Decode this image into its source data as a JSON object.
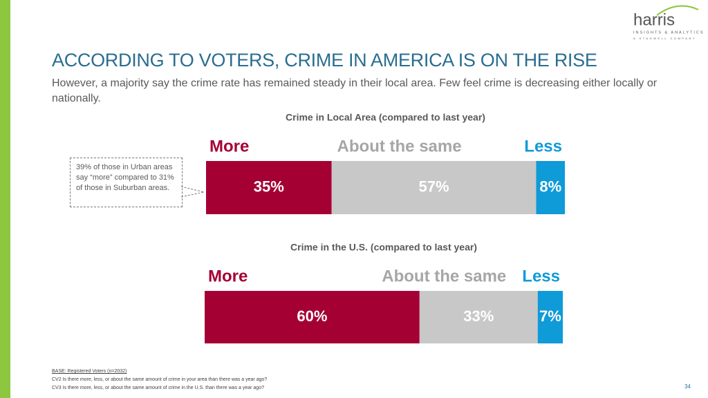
{
  "slide": {
    "title": "ACCORDING TO VOTERS, CRIME IN AMERICA IS ON THE RISE",
    "subtitle": "However, a majority say the crime rate has remained steady in their local area. Few feel crime is decreasing either locally or nationally.",
    "callout": "39% of those in Urban areas say “more” compared to 31% of those in Suburban areas.",
    "footnotes": [
      "BASE: Registered Voters (n=2032)",
      "CV2 Is there more, less, or about the same amount of crime in your area than there was a year ago?",
      "CV3 Is there more, less, or about the same amount of crime in the U.S. than there was a year ago?"
    ],
    "page_number": "34",
    "logo": {
      "name": "harris",
      "tagline": "INSIGHTS & ANALYTICS",
      "company": "A STAGWELL COMPANY"
    }
  },
  "chart_data": [
    {
      "type": "stacked_bar",
      "title": "Crime in Local Area (compared to last year)",
      "series": [
        {
          "name": "More",
          "color": "#a50034",
          "text_color": "#a50034",
          "values": [
            35
          ],
          "value_labels": [
            "35%"
          ]
        },
        {
          "name": "About the same",
          "color": "#c8c8c8",
          "text_color": "#a6a6a6",
          "values": [
            57
          ],
          "value_labels": [
            "57%"
          ]
        },
        {
          "name": "Less",
          "color": "#0f9ad8",
          "text_color": "#0f9ad8",
          "values": [
            8
          ],
          "value_labels": [
            "8%"
          ]
        }
      ]
    },
    {
      "type": "stacked_bar",
      "title": "Crime in the U.S. (compared to last year)",
      "series": [
        {
          "name": "More",
          "color": "#a50034",
          "text_color": "#a50034",
          "values": [
            60
          ],
          "value_labels": [
            "60%"
          ]
        },
        {
          "name": "About the same",
          "color": "#c8c8c8",
          "text_color": "#a6a6a6",
          "values": [
            33
          ],
          "value_labels": [
            "33%"
          ]
        },
        {
          "name": "Less",
          "color": "#0f9ad8",
          "text_color": "#0f9ad8",
          "values": [
            7
          ],
          "value_labels": [
            "7%"
          ]
        }
      ]
    }
  ]
}
